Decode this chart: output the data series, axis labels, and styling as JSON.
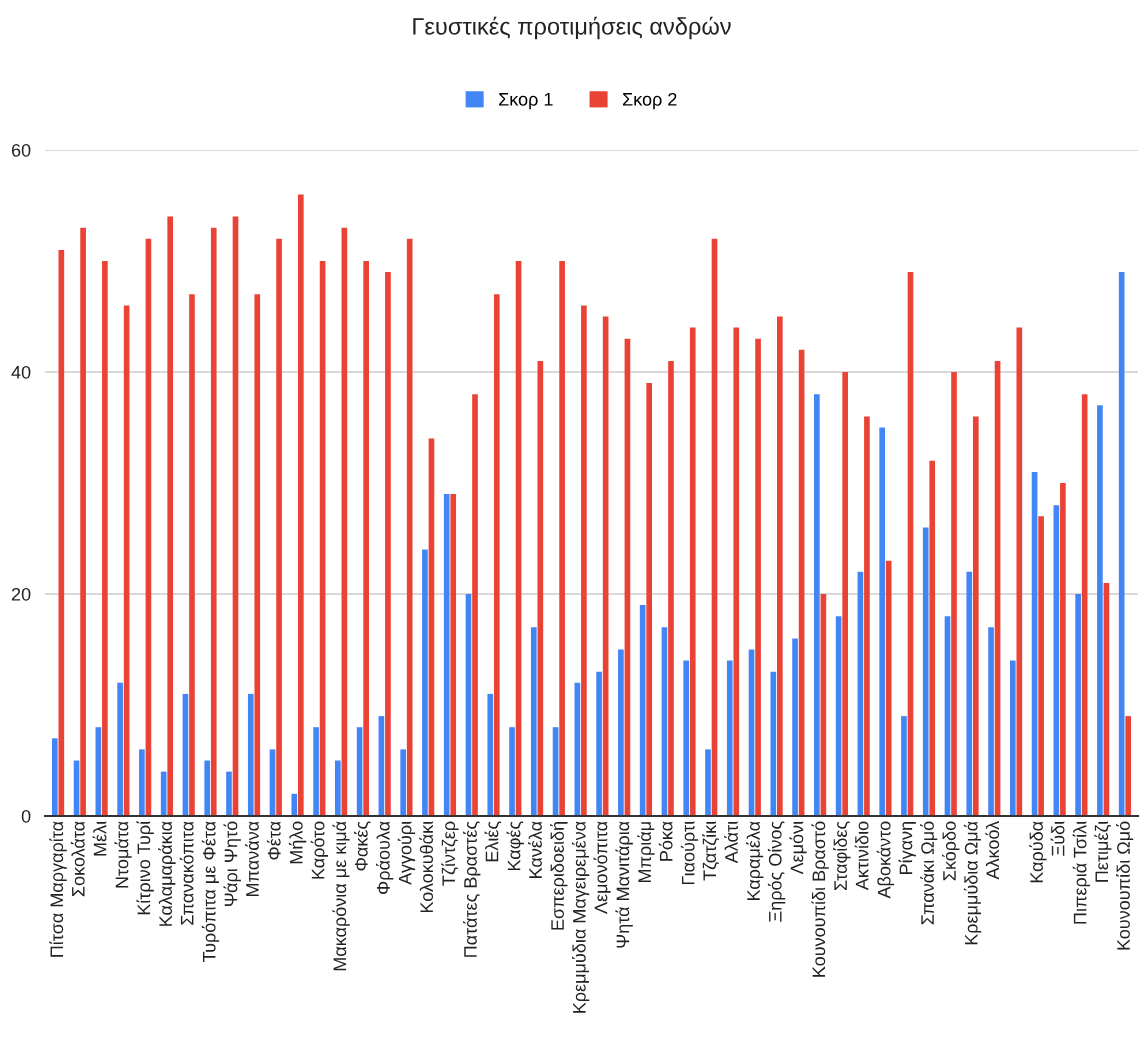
{
  "chart_data": {
    "type": "bar",
    "title": "Γευστικές προτιμήσεις ανδρών",
    "categories": [
      "Πίτσα Μαργαρίτα",
      "Σοκολάτα",
      "Μέλι",
      "Ντομάτα",
      "Κίτρινο Τυρί",
      "Καλαμαράκια",
      "Σπανακόπιτα",
      "Τυρόπιτα με Φέτα",
      "Ψάρι Ψητό",
      "Μπανάνα",
      "Φέτα",
      "Μήλο",
      "Καρότο",
      "Μακαρόνια με κιμά",
      "Φακές",
      "Φράουλα",
      "Αγγούρι",
      "Κολοκυθάκι",
      "Τζίντζερ",
      "Πατάτες Βραστές",
      "Ελιές",
      "Καφές",
      "Κανέλα",
      "Εσπεριδοειδή",
      "Κρεμμύδια Μαγειρεμένα",
      "Λεμονόπιτα",
      "Ψητά Μανιτάρια",
      "Μπριάμ",
      "Ρόκα",
      "Γιαούρτι",
      "Τζατζίκι",
      "Αλάτι",
      "Καραμέλα",
      "Ξηρός Οίνος",
      "Λεμόνι",
      "Κουνουπίδι Βραστό",
      "Σταφίδες",
      "Ακτινίδιο",
      "Αβοκάντο",
      "Ρίγανη",
      "Σπανάκι Ωμό",
      "Σκόρδο",
      "Κρεμμύδια Ωμά",
      "Αλκοόλ",
      null,
      "Καρύδα",
      "Ξύδι",
      "Πιπεριά Τσίλι",
      "Πετιμέζι",
      "Κουνουπίδι Ωμό"
    ],
    "series": [
      {
        "name": "Σκορ 1",
        "color": "#4285f4",
        "values": [
          7,
          5,
          8,
          12,
          6,
          4,
          11,
          5,
          4,
          11,
          6,
          2,
          8,
          5,
          8,
          9,
          6,
          24,
          29,
          20,
          11,
          8,
          17,
          8,
          12,
          13,
          15,
          19,
          17,
          14,
          6,
          14,
          15,
          13,
          16,
          38,
          18,
          22,
          35,
          9,
          26,
          18,
          22,
          17,
          14,
          31,
          28,
          20,
          37,
          49
        ]
      },
      {
        "name": "Σκορ 2",
        "color": "#ea4335",
        "values": [
          51,
          53,
          50,
          46,
          52,
          54,
          47,
          53,
          54,
          47,
          52,
          56,
          50,
          53,
          50,
          49,
          52,
          34,
          29,
          38,
          47,
          50,
          41,
          50,
          46,
          45,
          43,
          39,
          41,
          44,
          52,
          44,
          43,
          45,
          42,
          20,
          40,
          36,
          23,
          49,
          32,
          40,
          36,
          41,
          44,
          27,
          30,
          38,
          21,
          9
        ]
      }
    ],
    "ylim": [
      0,
      60
    ],
    "yticks": [
      0,
      20,
      40,
      60
    ],
    "grid": "y",
    "legend": "top"
  }
}
